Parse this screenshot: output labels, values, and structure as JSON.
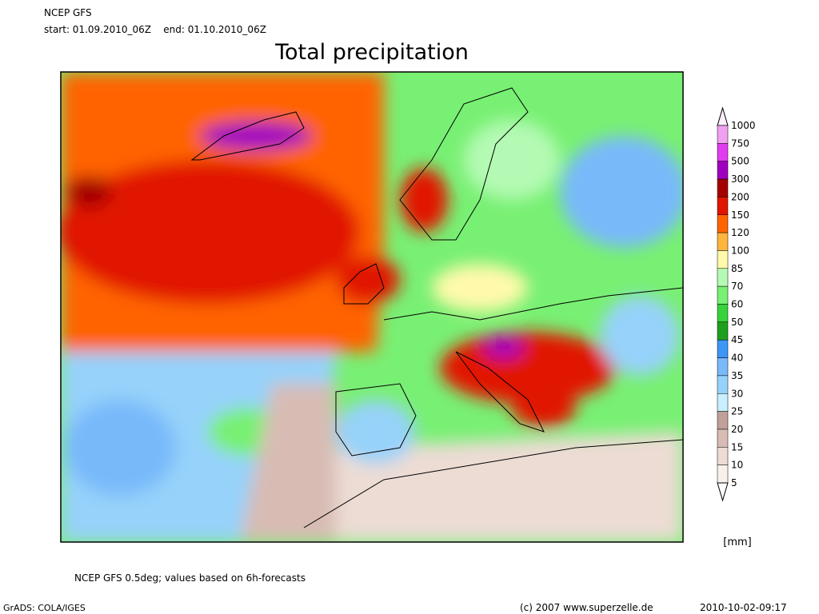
{
  "header": {
    "model": "NCEP GFS",
    "period": "start: 01.09.2010_06Z    end: 01.10.2010_06Z",
    "title": "Total precipitation"
  },
  "legend": {
    "levels": [
      1000,
      750,
      500,
      300,
      200,
      150,
      120,
      100,
      85,
      70,
      60,
      50,
      45,
      40,
      35,
      30,
      25,
      20,
      15,
      10,
      5
    ],
    "colors": [
      "#fff0ff",
      "#f0a0f0",
      "#e13cf0",
      "#a000c0",
      "#a50000",
      "#e11400",
      "#ff6400",
      "#ffb43c",
      "#fffaaa",
      "#b4fab4",
      "#78f073",
      "#37d23c",
      "#1ea01e",
      "#3c96f5",
      "#78b9fa",
      "#96d2fa",
      "#c8f0ff",
      "#c0a098",
      "#d8bcb4",
      "#ecdcd4",
      "#f8f0ea",
      "#ffffff"
    ],
    "unit": "[mm]"
  },
  "footer": {
    "note": "NCEP GFS 0.5deg; values based on 6h-forecasts",
    "software": "GrADS: COLA/IGES",
    "copyright": "(c) 2007 www.superzelle.de",
    "timestamp": "2010-10-02-09:17"
  }
}
